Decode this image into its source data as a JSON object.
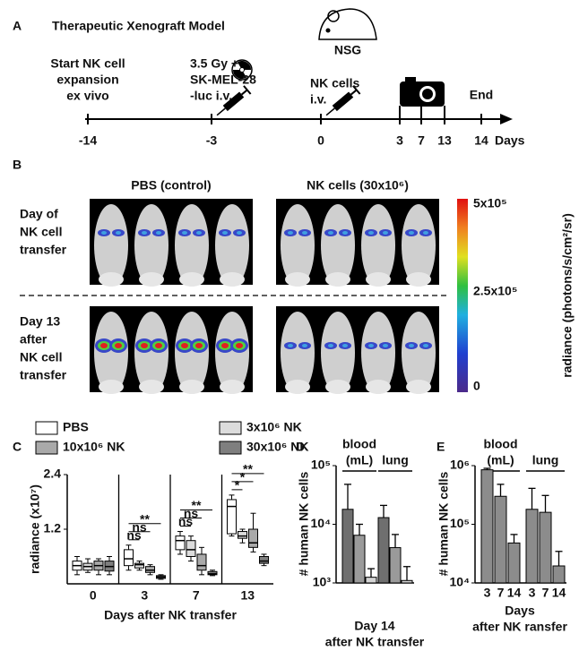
{
  "panel_a": {
    "letter": "A",
    "title": "Therapeutic Xenograft Model",
    "strain": "NSG",
    "events": [
      {
        "lines": [
          "Start NK cell",
          "expansion",
          "ex vivo"
        ]
      },
      {
        "lines": [
          "3.5 Gy +",
          "SK-MEL-28",
          "-luc i.v."
        ]
      },
      {
        "lines": [
          "NK cells",
          "i.v."
        ]
      },
      {
        "lines": [
          "End"
        ]
      }
    ],
    "days": [
      "-14",
      "-3",
      "0",
      "3",
      "7",
      "13",
      "14"
    ],
    "days_label": "Days"
  },
  "panel_b": {
    "letter": "B",
    "columns": [
      "PBS (control)",
      "NK cells (30x10⁶)"
    ],
    "rows": [
      {
        "lines": [
          "Day of",
          "NK cell",
          "transfer"
        ]
      },
      {
        "lines": [
          "Day 13",
          "after",
          "NK cell",
          "transfer"
        ]
      }
    ],
    "colorbar": {
      "title": "radiance (photons/s/cm²/sr)",
      "labels": [
        "5x10⁵",
        "2.5x10⁵",
        "0"
      ]
    }
  },
  "chart_data": [
    {
      "type": "box",
      "panel": "C",
      "ylabel": "radiance (x10⁷)",
      "xlabel": "Days after NK transfer",
      "categories": [
        "0",
        "3",
        "7",
        "13"
      ],
      "ylim": [
        0,
        2.4
      ],
      "yticks": [
        1.2,
        2.4
      ],
      "series": [
        {
          "name": "PBS",
          "color": "#ffffff",
          "values": [
            [
              0.2,
              0.3,
              0.4,
              0.5,
              0.6
            ],
            [
              0.3,
              0.4,
              0.55,
              0.75,
              0.85
            ],
            [
              0.65,
              0.75,
              0.95,
              1.05,
              1.15
            ],
            [
              1.05,
              1.1,
              1.7,
              1.85,
              1.95
            ]
          ]
        },
        {
          "name": "3x10⁶ NK",
          "color": "#dcdcdc",
          "values": [
            [
              0.25,
              0.3,
              0.38,
              0.45,
              0.55
            ],
            [
              0.3,
              0.35,
              0.42,
              0.45,
              0.5
            ],
            [
              0.5,
              0.6,
              0.75,
              0.95,
              1.05
            ],
            [
              0.9,
              1.0,
              1.05,
              1.15,
              1.2
            ]
          ]
        },
        {
          "name": "10x10⁶ NK",
          "color": "#a9a9a9",
          "values": [
            [
              0.2,
              0.3,
              0.4,
              0.5,
              0.55
            ],
            [
              0.2,
              0.25,
              0.3,
              0.38,
              0.42
            ],
            [
              0.2,
              0.3,
              0.4,
              0.65,
              0.8
            ],
            [
              0.7,
              0.8,
              0.9,
              1.2,
              1.55
            ]
          ]
        },
        {
          "name": "30x10⁶ NK",
          "color": "#7f7f7f",
          "values": [
            [
              0.2,
              0.28,
              0.38,
              0.5,
              0.6
            ],
            [
              0.1,
              0.12,
              0.15,
              0.18,
              0.2
            ],
            [
              0.18,
              0.2,
              0.22,
              0.27,
              0.3
            ],
            [
              0.4,
              0.45,
              0.5,
              0.6,
              0.65
            ]
          ]
        }
      ],
      "significance": [
        [],
        [
          "**",
          "ns",
          "ns"
        ],
        [
          "**",
          "ns",
          "ns"
        ],
        [
          "**",
          "*",
          "*"
        ]
      ]
    },
    {
      "type": "bar",
      "panel": "D",
      "ylabel": "# human NK cells",
      "xlabel": [
        "Day 14",
        "after NK transfer"
      ],
      "log": true,
      "ylim": [
        1000,
        100000
      ],
      "yticks": [
        {
          "value": 1000,
          "label": "10³"
        },
        {
          "value": 10000,
          "label": "10⁴"
        },
        {
          "value": 100000,
          "label": "10⁵"
        }
      ],
      "colors": [
        "#6f6f6f",
        "#9a9a9a",
        "#d4d4d4"
      ],
      "groups": [
        {
          "label": [
            "blood",
            "(mL)"
          ],
          "values": [
            18000,
            6500,
            1250
          ],
          "errors": [
            30000,
            3500,
            500
          ]
        },
        {
          "label": [
            "lung"
          ],
          "values": [
            13000,
            4000,
            1100
          ],
          "errors": [
            8000,
            2700,
            800
          ]
        }
      ]
    },
    {
      "type": "bar",
      "panel": "E",
      "ylabel": "# human NK cells",
      "xlabel": [
        "Days",
        "after NK ransfer"
      ],
      "log": true,
      "ylim": [
        10000,
        1000000
      ],
      "yticks": [
        {
          "value": 10000,
          "label": "10⁴"
        },
        {
          "value": 100000,
          "label": "10⁵"
        },
        {
          "value": 1000000,
          "label": "10⁶"
        }
      ],
      "colors": [
        "#8c8c8c",
        "#8c8c8c",
        "#8c8c8c"
      ],
      "bar_labels": [
        "3",
        "7",
        "14"
      ],
      "groups": [
        {
          "label": [
            "blood",
            "(mL)"
          ],
          "values": [
            850000,
            300000,
            48000
          ],
          "errors": [
            50000,
            180000,
            19000
          ]
        },
        {
          "label": [
            "lung"
          ],
          "values": [
            180000,
            160000,
            19500
          ],
          "errors": [
            230000,
            150000,
            15000
          ]
        }
      ]
    }
  ]
}
